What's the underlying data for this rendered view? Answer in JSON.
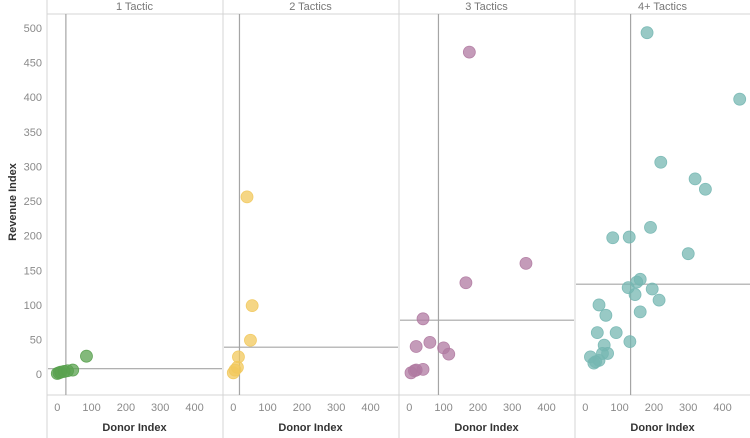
{
  "chart_data": {
    "type": "scatter",
    "ylabel": "Revenue Index",
    "xlabel": "Donor Index",
    "xticks": [
      0,
      100,
      200,
      300,
      400
    ],
    "yticks": [
      0,
      50,
      100,
      150,
      200,
      250,
      300,
      350,
      400,
      450,
      500
    ],
    "xlim": [
      -30,
      480
    ],
    "ylim": [
      -30,
      520
    ],
    "grid": false,
    "panels": [
      {
        "title": "1 Tactic",
        "color": "#59a14f",
        "ref_x": 25,
        "ref_y": 8,
        "points": [
          [
            0,
            1
          ],
          [
            5,
            2
          ],
          [
            10,
            3
          ],
          [
            20,
            4
          ],
          [
            30,
            5
          ],
          [
            45,
            6
          ],
          [
            85,
            26
          ]
        ]
      },
      {
        "title": "2 Tactics",
        "color": "#f1c85c",
        "ref_x": 18,
        "ref_y": 39,
        "points": [
          [
            0,
            2
          ],
          [
            5,
            6
          ],
          [
            12,
            10
          ],
          [
            15,
            25
          ],
          [
            40,
            256
          ],
          [
            50,
            49
          ],
          [
            55,
            99
          ]
        ]
      },
      {
        "title": "3 Tactics",
        "color": "#b07aa1",
        "ref_x": 85,
        "ref_y": 78,
        "points": [
          [
            5,
            2
          ],
          [
            15,
            5
          ],
          [
            20,
            6
          ],
          [
            20,
            40
          ],
          [
            40,
            7
          ],
          [
            40,
            80
          ],
          [
            60,
            46
          ],
          [
            100,
            38
          ],
          [
            115,
            29
          ],
          [
            165,
            132
          ],
          [
            175,
            465
          ],
          [
            340,
            160
          ]
        ]
      },
      {
        "title": "4+ Tactics",
        "color": "#76b7b2",
        "ref_x": 132,
        "ref_y": 130,
        "points": [
          [
            15,
            25
          ],
          [
            25,
            16
          ],
          [
            30,
            18
          ],
          [
            35,
            60
          ],
          [
            40,
            100
          ],
          [
            40,
            20
          ],
          [
            50,
            30
          ],
          [
            55,
            42
          ],
          [
            60,
            85
          ],
          [
            65,
            30
          ],
          [
            80,
            197
          ],
          [
            90,
            60
          ],
          [
            125,
            125
          ],
          [
            128,
            198
          ],
          [
            130,
            47
          ],
          [
            145,
            115
          ],
          [
            150,
            133
          ],
          [
            160,
            137
          ],
          [
            160,
            90
          ],
          [
            180,
            493
          ],
          [
            190,
            212
          ],
          [
            195,
            123
          ],
          [
            215,
            107
          ],
          [
            220,
            306
          ],
          [
            300,
            174
          ],
          [
            320,
            282
          ],
          [
            350,
            267
          ],
          [
            450,
            397
          ]
        ]
      }
    ]
  }
}
